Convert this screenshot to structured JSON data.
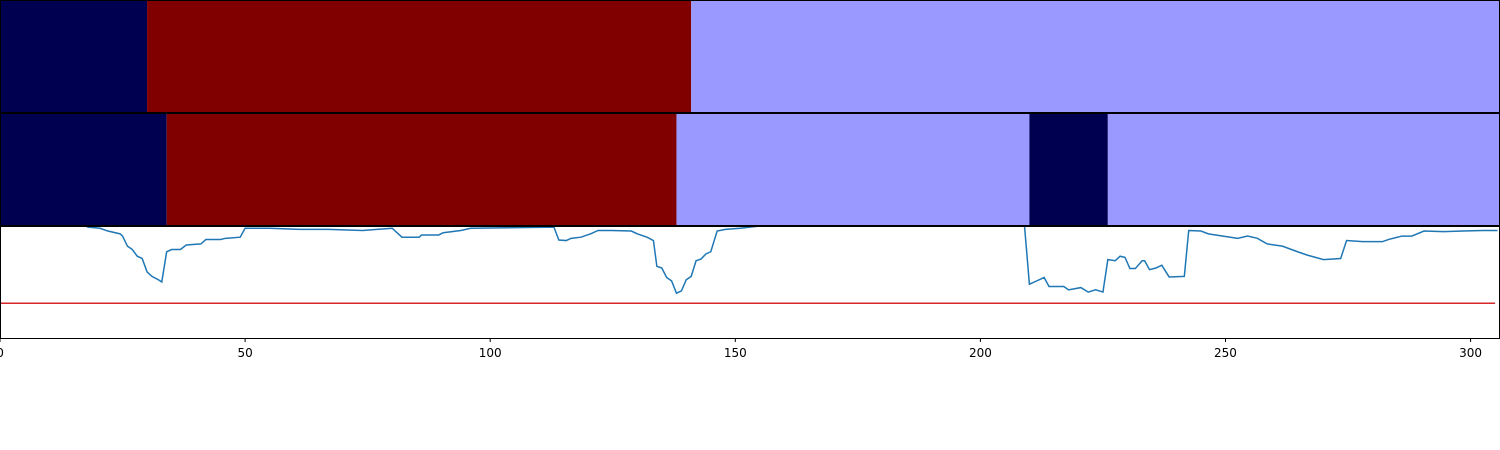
{
  "chart_data": {
    "type": "segments",
    "xlim": [
      0,
      306
    ],
    "xticks": [
      0,
      50,
      100,
      150,
      200,
      250,
      300
    ],
    "rows": [
      {
        "edges": [
          0,
          30,
          141,
          306
        ],
        "colors": [
          "#000050",
          "#800000",
          "#9999ff"
        ]
      },
      {
        "edges": [
          0,
          34,
          138,
          210,
          226,
          306
        ],
        "colors": [
          "#000050",
          "#800000",
          "#9999ff",
          "#000050",
          "#9999ff"
        ]
      }
    ],
    "line": {
      "color": "#1f77b4",
      "ylim": [
        0,
        1
      ],
      "x": [
        0,
        17.4,
        18,
        20.4,
        22,
        24.5,
        25,
        26,
        27,
        28,
        29,
        30,
        31,
        32.3,
        33,
        34,
        35,
        36.8,
        38,
        41,
        42,
        45,
        46,
        49,
        50,
        55,
        61,
        67,
        74,
        80,
        82,
        85.5,
        86,
        89.5,
        90.4,
        94,
        96,
        113,
        114,
        115.5,
        116.5,
        118.5,
        120.5,
        122,
        124.7,
        128.8,
        130,
        132,
        133.3,
        134,
        135,
        136,
        137,
        138,
        139,
        140,
        141,
        142,
        143,
        144,
        145,
        146.3,
        148,
        151,
        155,
        163,
        184,
        204,
        209,
        210,
        211.5,
        213,
        214,
        217,
        218,
        220.5,
        222,
        223.5,
        225,
        226,
        227.5,
        228.5,
        229.5,
        230.5,
        231.6,
        233,
        233.5,
        234.5,
        235.8,
        237,
        238.5,
        241.6,
        242.5,
        245,
        246.5,
        249.5,
        252.5,
        254.5,
        256.5,
        258.5,
        261.6,
        264.7,
        266.7,
        270,
        273.5,
        274.7,
        278,
        282,
        283.3,
        286,
        288,
        290.5,
        294.5,
        298.5,
        302.5,
        305.5
      ],
      "values": [
        1.05,
        1.0,
        0.99,
        0.98,
        0.955,
        0.93,
        0.91,
        0.82,
        0.79,
        0.73,
        0.71,
        0.59,
        0.55,
        0.52,
        0.5,
        0.77,
        0.79,
        0.79,
        0.83,
        0.84,
        0.88,
        0.88,
        0.89,
        0.9,
        0.98,
        0.98,
        0.97,
        0.97,
        0.96,
        0.98,
        0.9,
        0.9,
        0.92,
        0.92,
        0.94,
        0.96,
        0.98,
        0.99,
        0.875,
        0.87,
        0.89,
        0.9,
        0.93,
        0.96,
        0.96,
        0.955,
        0.93,
        0.9,
        0.87,
        0.64,
        0.625,
        0.54,
        0.51,
        0.4,
        0.42,
        0.52,
        0.55,
        0.69,
        0.705,
        0.75,
        0.77,
        0.955,
        0.97,
        0.98,
        1.0,
        1.0,
        1.0,
        1.0,
        1.0,
        0.48,
        0.51,
        0.54,
        0.46,
        0.46,
        0.43,
        0.45,
        0.41,
        0.43,
        0.41,
        0.7,
        0.69,
        0.73,
        0.72,
        0.62,
        0.62,
        0.69,
        0.69,
        0.61,
        0.625,
        0.65,
        0.545,
        0.55,
        0.96,
        0.955,
        0.93,
        0.91,
        0.89,
        0.91,
        0.89,
        0.84,
        0.82,
        0.77,
        0.74,
        0.7,
        0.71,
        0.87,
        0.86,
        0.86,
        0.88,
        0.91,
        0.91,
        0.955,
        0.95,
        0.955,
        0.96,
        0.96
      ]
    },
    "threshold": {
      "value": 0.31,
      "color": "#d62728",
      "xrange": [
        0,
        305
      ]
    }
  }
}
